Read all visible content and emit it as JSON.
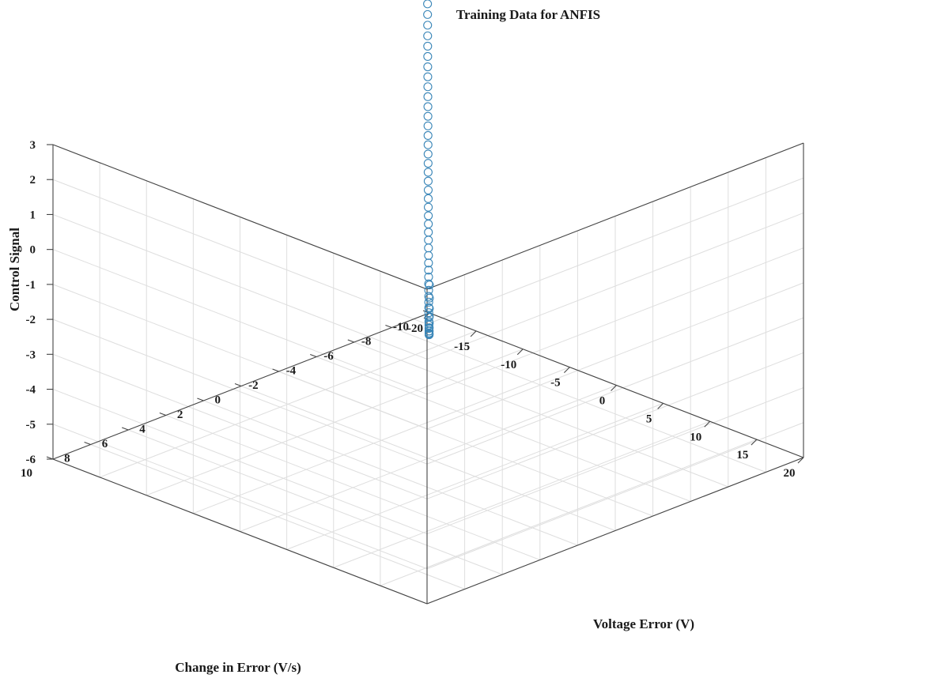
{
  "chart_data": {
    "type": "scatter",
    "subtype": "3d-scatter",
    "title": "Training Data for ANFIS",
    "xlabel": "Voltage Error (V)",
    "ylabel": "Change in Error (V/s)",
    "zlabel": "Control Signal",
    "xlim": [
      -20,
      20
    ],
    "ylim": [
      -10,
      10
    ],
    "zlim": [
      -6,
      3
    ],
    "xticks": [
      "-20",
      "-15",
      "-10",
      "-5",
      "0",
      "5",
      "10",
      "15",
      "20"
    ],
    "yticks": [
      "-10",
      "-8",
      "-6",
      "-4",
      "-2",
      "0",
      "2",
      "4",
      "6",
      "8",
      "10"
    ],
    "zticks": [
      "-6",
      "-5",
      "-4",
      "-3",
      "-2",
      "-1",
      "0",
      "1",
      "2",
      "3"
    ],
    "grid": true,
    "marker": "circle-open",
    "marker_color": "#3a86b8",
    "series": [
      {
        "x": [
          -20,
          -19.4,
          -18.8,
          -18.2,
          -17.6,
          -17.0,
          -16.4,
          -15.8,
          -15.2,
          -14.6,
          -14.0,
          -13.4,
          -12.8,
          -12.2,
          -11.6,
          -11.0,
          -10.4,
          -9.8,
          -9.2,
          -8.6,
          -8.0,
          -7.4,
          -6.8,
          -6.2,
          -5.6,
          -5.0,
          -4.4,
          -3.8,
          -3.2,
          -2.6,
          -2.0,
          -1.4,
          -0.8,
          -0.2,
          0.4,
          1.0,
          1.6,
          2.2,
          2.8,
          3.4,
          4.0,
          4.6,
          5.2,
          5.8,
          6.4,
          7.0,
          7.6,
          8.2,
          8.8,
          9.4,
          10.0,
          10.6,
          11.2,
          11.8,
          12.4,
          13.0,
          13.6,
          14.2,
          14.8,
          15.4,
          16.0,
          16.6,
          17.2,
          17.8,
          18.4,
          19.0,
          19.6,
          20.0
        ],
        "y": [
          -10,
          -9.7,
          -9.4,
          -9.1,
          -8.8,
          -8.5,
          -8.2,
          -7.9,
          -7.6,
          -7.3,
          -7.0,
          -6.7,
          -6.4,
          -6.1,
          -5.8,
          -5.5,
          -5.2,
          -4.9,
          -4.6,
          -4.3,
          -4.0,
          -3.7,
          -3.4,
          -3.1,
          -2.8,
          -2.5,
          -2.2,
          -1.9,
          -1.6,
          -1.3,
          -1.0,
          -0.7,
          -0.4,
          -0.1,
          0.2,
          0.5,
          0.8,
          1.1,
          1.4,
          1.7,
          2.0,
          2.3,
          2.6,
          2.9,
          3.2,
          3.5,
          3.8,
          4.1,
          4.4,
          4.7,
          5.0,
          5.3,
          5.6,
          5.9,
          6.2,
          6.5,
          6.8,
          7.1,
          7.4,
          7.7,
          8.0,
          8.3,
          8.6,
          8.9,
          9.2,
          9.5,
          9.8,
          10.0
        ],
        "z": [
          -5.2,
          -5.45,
          -5.62,
          -5.73,
          -5.79,
          -5.8,
          -5.77,
          -5.71,
          -5.62,
          -5.5,
          -5.36,
          -5.2,
          -5.02,
          -4.82,
          -4.6,
          -4.37,
          -4.13,
          -3.87,
          -3.6,
          -3.32,
          -3.03,
          -2.73,
          -2.42,
          -2.1,
          -1.78,
          -1.45,
          -1.11,
          -0.77,
          -0.42,
          -0.07,
          0.29,
          0.65,
          1.02,
          1.39,
          1.76,
          2.14,
          2.52,
          2.9,
          3.29,
          3.68,
          4.07,
          4.47,
          4.87,
          5.27,
          5.68,
          6.09,
          6.5,
          6.91,
          7.33,
          7.75,
          8.17,
          8.6,
          9.03,
          9.46,
          9.89,
          10.33,
          10.77,
          11.21,
          11.65,
          12.1,
          12.55,
          13.0,
          13.45,
          13.91,
          14.37,
          14.83,
          15.29,
          15.6
        ]
      }
    ]
  }
}
